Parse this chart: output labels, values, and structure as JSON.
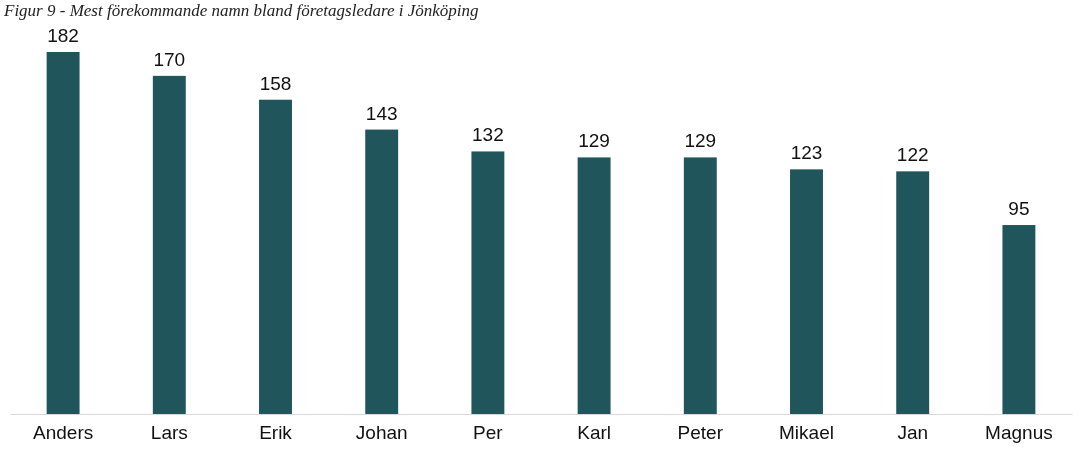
{
  "chart_data": {
    "type": "bar",
    "title": "Figur 9 - Mest förekommande namn bland företagsledare i Jönköping",
    "categories": [
      "Anders",
      "Lars",
      "Erik",
      "Johan",
      "Per",
      "Karl",
      "Peter",
      "Mikael",
      "Jan",
      "Magnus"
    ],
    "values": [
      182,
      170,
      158,
      143,
      132,
      129,
      129,
      123,
      122,
      95
    ],
    "color": "#20555c",
    "data_labels": true
  }
}
